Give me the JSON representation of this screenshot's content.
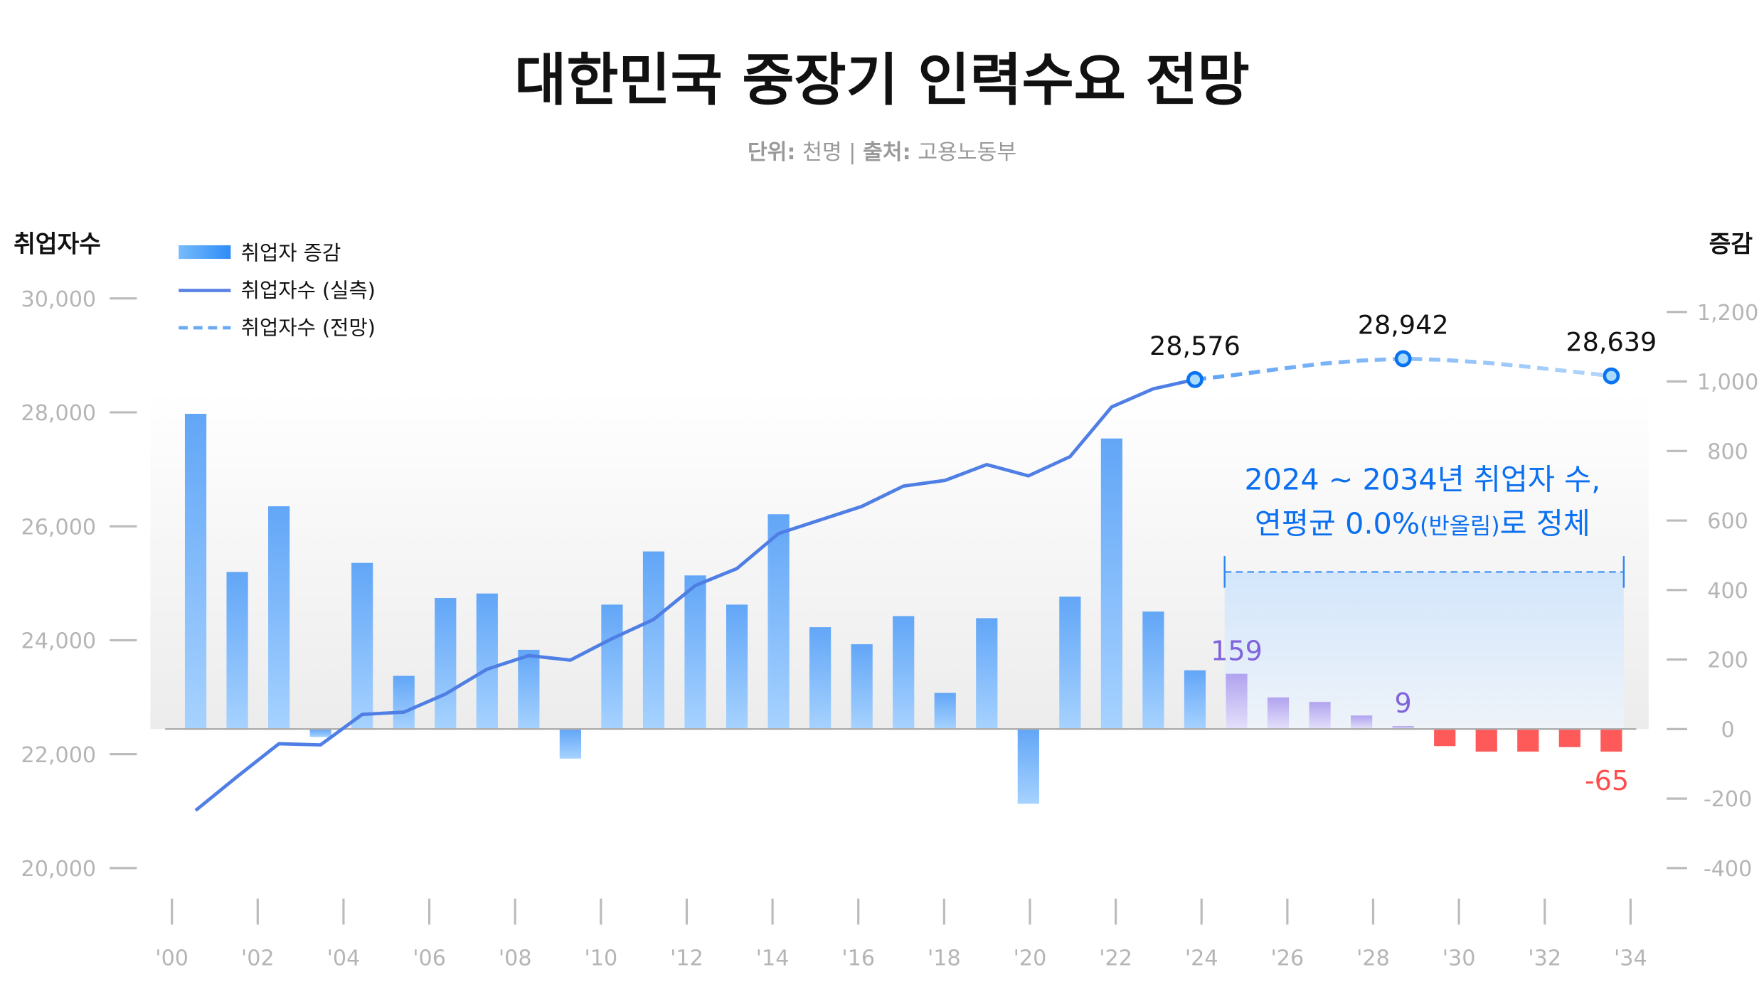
{
  "chart_data": {
    "type": "bar+line",
    "title": "대한민국 중장기 인력수요 전망",
    "subtitle": {
      "unit_label": "단위:",
      "unit": "천명",
      "separator": "|",
      "source_label": "출처:",
      "source": "고용노동부"
    },
    "ylabel_left": "취업자수",
    "ylabel_right": "증감",
    "ylim_left": [
      20000,
      30000
    ],
    "ylim_right": [
      -400,
      1200
    ],
    "yticks_left": [
      "30,000",
      "28,000",
      "26,000",
      "24,000",
      "22,000",
      "20,000"
    ],
    "yticks_left_values": [
      30000,
      28000,
      26000,
      24000,
      22000,
      20000
    ],
    "yticks_right": [
      "1,200",
      "1,000",
      "800",
      "600",
      "400",
      "200",
      "0",
      "-200",
      "-400"
    ],
    "yticks_right_values": [
      1200,
      1000,
      800,
      600,
      400,
      200,
      0,
      -200,
      -400
    ],
    "xticks": [
      "'00",
      "'02",
      "'04",
      "'06",
      "'08",
      "'10",
      "'12",
      "'14",
      "'16",
      "'18",
      "'20",
      "'22",
      "'24",
      "'26",
      "'28",
      "'30",
      "'32",
      "'34"
    ],
    "legend": [
      "취업자 증감",
      "취업자수 (실측)",
      "취업자수 (전망)"
    ],
    "legend_placement": "top-left",
    "grid": false,
    "years": [
      2000,
      2001,
      2002,
      2003,
      2004,
      2005,
      2006,
      2007,
      2008,
      2009,
      2010,
      2011,
      2012,
      2013,
      2014,
      2015,
      2016,
      2017,
      2018,
      2019,
      2020,
      2021,
      2022,
      2023,
      2024,
      2025,
      2026,
      2027,
      2028,
      2029,
      2030,
      2031,
      2032,
      2033,
      2034
    ],
    "series": [
      {
        "name": "취업자 증감",
        "type": "bar",
        "axis": "right",
        "values": [
          907,
          452,
          641,
          -23,
          478,
          153,
          377,
          390,
          228,
          -85,
          358,
          511,
          442,
          358,
          618,
          293,
          244,
          325,
          104,
          319,
          -215,
          381,
          836,
          338,
          169,
          159,
          91,
          78,
          39,
          9,
          -49,
          -65,
          -65,
          -52,
          -65
        ]
      },
      {
        "name": "취업자수 (실측)",
        "type": "line",
        "axis": "left",
        "x": [
          2000,
          2001,
          2002,
          2003,
          2004,
          2005,
          2006,
          2007,
          2008,
          2009,
          2010,
          2011,
          2012,
          2013,
          2014,
          2015,
          2016,
          2017,
          2018,
          2019,
          2020,
          2021,
          2022,
          2023,
          2024
        ],
        "values": [
          21012,
          21607,
          22183,
          22163,
          22698,
          22738,
          23056,
          23492,
          23730,
          23651,
          24028,
          24365,
          24960,
          25258,
          25873,
          26111,
          26349,
          26706,
          26806,
          27083,
          26885,
          27222,
          28095,
          28413,
          28576
        ]
      },
      {
        "name": "취업자수 (전망)",
        "type": "line-dashed",
        "axis": "left",
        "x": [
          2024,
          2025,
          2026,
          2027,
          2028,
          2029,
          2030,
          2031,
          2032,
          2033,
          2034
        ],
        "values": [
          28576,
          28660,
          28760,
          28850,
          28910,
          28942,
          28920,
          28870,
          28800,
          28720,
          28639
        ]
      }
    ],
    "point_labels": [
      {
        "year": 2024,
        "value": 28576,
        "text": "28,576"
      },
      {
        "year": 2029,
        "value": 28942,
        "text": "28,942"
      },
      {
        "year": 2034,
        "value": 28639,
        "text": "28,639"
      }
    ],
    "bar_labels": [
      {
        "year": 2025,
        "text": "159"
      },
      {
        "year": 2029,
        "text": "9"
      },
      {
        "year": 2034,
        "text": "-65"
      }
    ],
    "annotation": {
      "line1": "2024 ~ 2034년 취업자 수,",
      "line2a": "연평균 0.0%",
      "line2b": "(반올림)",
      "line2c": "로 정체",
      "range": [
        2025,
        2034
      ]
    },
    "colors": {
      "bar": "#63a8f7",
      "bar_forecast": "#b4a8ef",
      "bar_negative": "#ff5a5a",
      "line": "#4f7fe4",
      "line_forecast": "#6aaaf5",
      "annotation": "#0a6ff0",
      "label_purple": "#7f63dc",
      "label_red": "#ff4d4d"
    }
  }
}
